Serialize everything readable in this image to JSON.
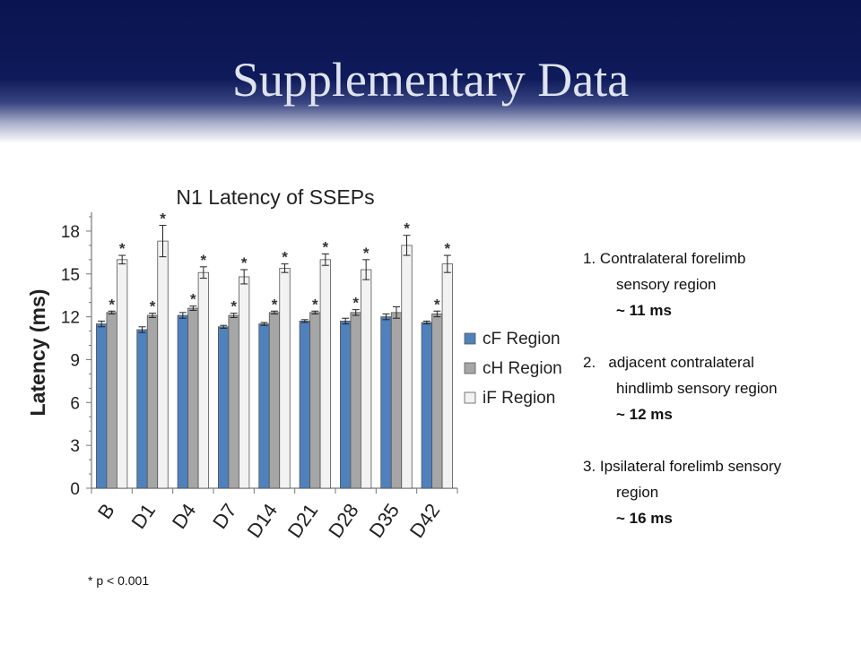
{
  "slide": {
    "title": "Supplementary Data",
    "footnote": "* p < 0.001"
  },
  "notes": [
    {
      "number": "1.",
      "lines": [
        "Contralateral forelimb",
        "sensory region"
      ],
      "value": "~ 11 ms"
    },
    {
      "number": "2.",
      "lines": [
        "adjacent contralateral",
        "hindlimb sensory region"
      ],
      "value": "~ 12 ms"
    },
    {
      "number": "3.",
      "lines": [
        "Ipsilateral forelimb sensory",
        "region"
      ],
      "value": "~ 16 ms"
    }
  ],
  "chart_data": {
    "type": "bar",
    "title": "N1 Latency of SSEPs",
    "ylabel": "Latency (ms)",
    "xlabel": "",
    "ylim": [
      0,
      19
    ],
    "yticks": [
      0,
      3,
      6,
      9,
      12,
      15,
      18
    ],
    "categories": [
      "B",
      "D1",
      "D4",
      "D7",
      "D14",
      "D21",
      "D28",
      "D35",
      "D42"
    ],
    "legend_position": "right",
    "significance_marker": "*",
    "series": [
      {
        "name": "cF Region",
        "color": "#4f81bd",
        "values": [
          11.5,
          11.1,
          12.1,
          11.3,
          11.5,
          11.7,
          11.7,
          12.0,
          11.6
        ],
        "errors": [
          0.2,
          0.2,
          0.2,
          0.1,
          0.1,
          0.1,
          0.2,
          0.2,
          0.1
        ],
        "significant": [
          false,
          false,
          false,
          false,
          false,
          false,
          false,
          false,
          false
        ]
      },
      {
        "name": "cH Region",
        "color": "#a6a6a6",
        "values": [
          12.3,
          12.1,
          12.6,
          12.1,
          12.3,
          12.3,
          12.3,
          12.3,
          12.2
        ],
        "errors": [
          0.1,
          0.15,
          0.15,
          0.15,
          0.1,
          0.1,
          0.2,
          0.4,
          0.2
        ],
        "significant": [
          true,
          true,
          true,
          true,
          true,
          true,
          true,
          false,
          true
        ]
      },
      {
        "name": "iF Region",
        "color": "#f2f2f2",
        "values": [
          16.0,
          17.3,
          15.1,
          14.8,
          15.4,
          16.0,
          15.3,
          17.0,
          15.7
        ],
        "errors": [
          0.3,
          1.1,
          0.4,
          0.5,
          0.3,
          0.4,
          0.7,
          0.7,
          0.6
        ],
        "significant": [
          true,
          true,
          true,
          true,
          true,
          true,
          true,
          true,
          true
        ]
      }
    ]
  }
}
